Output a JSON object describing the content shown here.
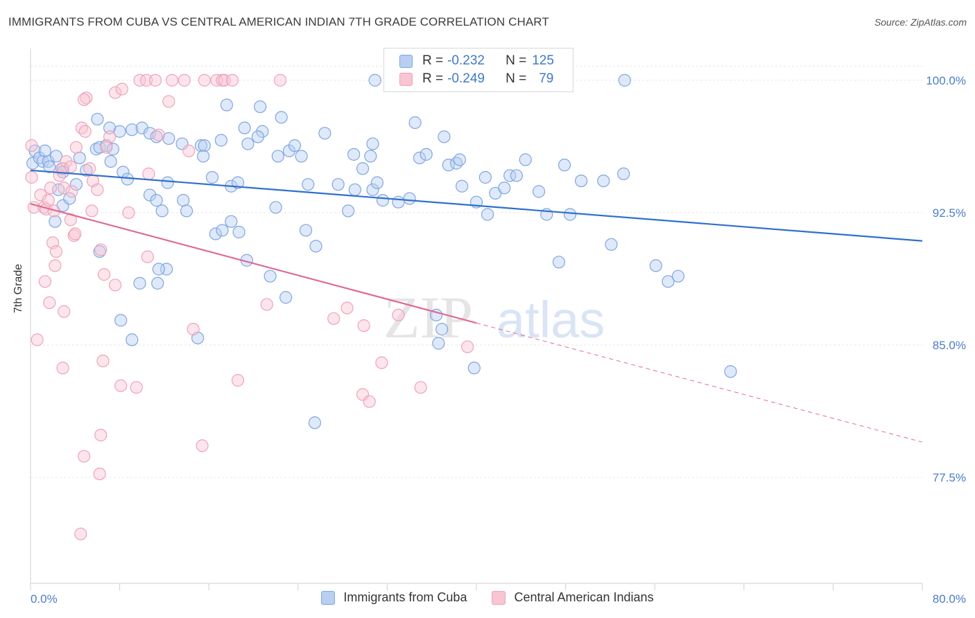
{
  "header": {
    "title": "IMMIGRANTS FROM CUBA VS CENTRAL AMERICAN INDIAN 7TH GRADE CORRELATION CHART",
    "source": "Source: ZipAtlas.com"
  },
  "watermark": {
    "zip": "ZIP",
    "atlas": "atlas"
  },
  "legend": {
    "r_label": "R =",
    "n_label": "N =",
    "series": [
      {
        "name": "Immigrants from Cuba",
        "r": "-0.232",
        "n": "125"
      },
      {
        "name": "Central American Indians",
        "r": "-0.249",
        "n": "79"
      }
    ]
  },
  "colors": {
    "blue_fill": "#b9cff2",
    "blue_stroke": "#7ea6e0",
    "blue_line": "#2f6fcf",
    "pink_fill": "#f8c5d3",
    "pink_stroke": "#eea3ba",
    "pink_line": "#e06a95",
    "tick_text": "#4a7cc9"
  },
  "chart_data": {
    "type": "scatter",
    "title": "IMMIGRANTS FROM CUBA VS CENTRAL AMERICAN INDIAN 7TH GRADE CORRELATION CHART",
    "xlabel": "",
    "ylabel": "7th Grade",
    "xlim": [
      0,
      80
    ],
    "ylim": [
      71.5,
      101.8
    ],
    "x_tick_labels": [
      "0.0%",
      "80.0%"
    ],
    "y_ticks": [
      77.5,
      85.0,
      92.5,
      100.0
    ],
    "y_tick_labels": [
      "77.5%",
      "85.0%",
      "92.5%",
      "100.0%"
    ],
    "grid": true,
    "series": [
      {
        "name": "Immigrants from Cuba",
        "trend": {
          "x": [
            0,
            80
          ],
          "y": [
            94.9,
            90.9
          ],
          "dashed_from": null
        },
        "points": [
          [
            0.2,
            95.3
          ],
          [
            0.4,
            96.0
          ],
          [
            0.8,
            95.6
          ],
          [
            1.1,
            95.4
          ],
          [
            1.3,
            96.0
          ],
          [
            1.6,
            95.4
          ],
          [
            2.3,
            95.7
          ],
          [
            2.9,
            95.0
          ],
          [
            2.9,
            94.8
          ],
          [
            2.9,
            92.9
          ],
          [
            2.2,
            92.0
          ],
          [
            2.5,
            93.8
          ],
          [
            3.5,
            93.3
          ],
          [
            4.1,
            94.1
          ],
          [
            4.4,
            95.6
          ],
          [
            5.0,
            94.9
          ],
          [
            5.9,
            96.1
          ],
          [
            6.2,
            96.2
          ],
          [
            6.8,
            96.3
          ],
          [
            7.4,
            96.1
          ],
          [
            6.0,
            97.8
          ],
          [
            7.1,
            97.3
          ],
          [
            8.0,
            97.1
          ],
          [
            9.1,
            97.2
          ],
          [
            10.0,
            97.3
          ],
          [
            10.7,
            97.0
          ],
          [
            11.3,
            96.8
          ],
          [
            12.4,
            96.7
          ],
          [
            13.6,
            96.4
          ],
          [
            15.3,
            96.3
          ],
          [
            15.6,
            96.3
          ],
          [
            8.3,
            94.8
          ],
          [
            8.7,
            94.4
          ],
          [
            10.7,
            93.5
          ],
          [
            11.3,
            93.2
          ],
          [
            12.3,
            94.2
          ],
          [
            13.7,
            93.2
          ],
          [
            14.0,
            92.6
          ],
          [
            11.8,
            92.6
          ],
          [
            15.5,
            95.7
          ],
          [
            16.3,
            94.5
          ],
          [
            17.1,
            96.6
          ],
          [
            17.6,
            98.6
          ],
          [
            19.2,
            97.3
          ],
          [
            19.5,
            96.4
          ],
          [
            20.8,
            97.1
          ],
          [
            20.4,
            96.8
          ],
          [
            20.6,
            98.5
          ],
          [
            22.2,
            95.7
          ],
          [
            22.0,
            92.8
          ],
          [
            23.2,
            96.0
          ],
          [
            23.7,
            96.3
          ],
          [
            24.3,
            95.7
          ],
          [
            22.5,
            97.9
          ],
          [
            18.0,
            94.0
          ],
          [
            18.6,
            94.2
          ],
          [
            16.6,
            91.3
          ],
          [
            17.2,
            91.5
          ],
          [
            18.0,
            92.0
          ],
          [
            18.7,
            91.4
          ],
          [
            19.4,
            89.8
          ],
          [
            21.5,
            88.9
          ],
          [
            22.9,
            87.7
          ],
          [
            24.7,
            91.5
          ],
          [
            25.6,
            90.6
          ],
          [
            24.9,
            94.1
          ],
          [
            26.4,
            97.0
          ],
          [
            27.6,
            94.1
          ],
          [
            28.5,
            92.6
          ],
          [
            29.1,
            93.8
          ],
          [
            29.0,
            95.8
          ],
          [
            29.8,
            95.0
          ],
          [
            30.5,
            95.7
          ],
          [
            30.7,
            93.8
          ],
          [
            31.1,
            94.2
          ],
          [
            31.6,
            93.2
          ],
          [
            30.7,
            96.4
          ],
          [
            30.9,
            100.0
          ],
          [
            34.5,
            97.6
          ],
          [
            34.9,
            95.6
          ],
          [
            35.5,
            95.8
          ],
          [
            34.0,
            93.3
          ],
          [
            33.0,
            93.1
          ],
          [
            37.5,
            95.2
          ],
          [
            38.2,
            95.3
          ],
          [
            38.5,
            95.5
          ],
          [
            37.1,
            96.8
          ],
          [
            38.7,
            94.0
          ],
          [
            40.8,
            94.5
          ],
          [
            40.0,
            93.1
          ],
          [
            41.0,
            92.4
          ],
          [
            41.7,
            93.6
          ],
          [
            43.0,
            94.6
          ],
          [
            43.6,
            94.6
          ],
          [
            42.5,
            93.9
          ],
          [
            44.4,
            95.5
          ],
          [
            45.6,
            93.7
          ],
          [
            46.3,
            92.4
          ],
          [
            47.9,
            95.2
          ],
          [
            48.4,
            92.4
          ],
          [
            49.4,
            94.3
          ],
          [
            51.4,
            94.3
          ],
          [
            53.2,
            94.7
          ],
          [
            53.3,
            100.0
          ],
          [
            52.1,
            90.7
          ],
          [
            56.1,
            89.5
          ],
          [
            57.2,
            88.6
          ],
          [
            58.1,
            88.9
          ],
          [
            62.8,
            83.5
          ],
          [
            47.4,
            89.7
          ],
          [
            36.4,
            86.7
          ],
          [
            36.9,
            85.9
          ],
          [
            36.6,
            85.1
          ],
          [
            39.8,
            83.7
          ],
          [
            25.5,
            80.6
          ],
          [
            15.0,
            85.4
          ],
          [
            9.1,
            85.3
          ],
          [
            9.8,
            88.5
          ],
          [
            11.4,
            88.5
          ],
          [
            12.2,
            89.3
          ],
          [
            8.1,
            86.4
          ],
          [
            6.2,
            90.3
          ],
          [
            11.5,
            89.3
          ],
          [
            7.2,
            95.4
          ],
          [
            1.7,
            95.1
          ]
        ]
      },
      {
        "name": "Central American Indians",
        "trend": {
          "x": [
            0,
            80
          ],
          "y": [
            93.0,
            79.5
          ],
          "dashed_from": 40
        },
        "points": [
          [
            0.1,
            96.3
          ],
          [
            0.1,
            94.5
          ],
          [
            0.3,
            92.8
          ],
          [
            0.9,
            93.5
          ],
          [
            1.2,
            92.8
          ],
          [
            1.4,
            92.7
          ],
          [
            1.6,
            93.2
          ],
          [
            1.8,
            93.9
          ],
          [
            2.1,
            92.6
          ],
          [
            2.0,
            90.8
          ],
          [
            2.3,
            90.3
          ],
          [
            2.2,
            89.5
          ],
          [
            2.6,
            94.6
          ],
          [
            3.0,
            93.9
          ],
          [
            2.8,
            95.0
          ],
          [
            3.2,
            95.4
          ],
          [
            3.6,
            95.1
          ],
          [
            3.7,
            93.7
          ],
          [
            3.6,
            92.1
          ],
          [
            3.9,
            91.2
          ],
          [
            4.0,
            91.3
          ],
          [
            4.1,
            96.2
          ],
          [
            4.6,
            97.3
          ],
          [
            4.9,
            97.1
          ],
          [
            5.0,
            99.0
          ],
          [
            4.8,
            98.9
          ],
          [
            5.3,
            95.0
          ],
          [
            5.6,
            94.3
          ],
          [
            6.0,
            93.8
          ],
          [
            5.5,
            92.6
          ],
          [
            6.3,
            90.4
          ],
          [
            6.6,
            89.0
          ],
          [
            7.1,
            96.8
          ],
          [
            6.8,
            96.2
          ],
          [
            7.6,
            99.3
          ],
          [
            8.2,
            99.5
          ],
          [
            8.8,
            92.5
          ],
          [
            7.6,
            88.4
          ],
          [
            8.1,
            82.7
          ],
          [
            9.5,
            82.6
          ],
          [
            10.6,
            94.7
          ],
          [
            10.5,
            90.0
          ],
          [
            11.5,
            96.9
          ],
          [
            9.8,
            100.0
          ],
          [
            10.4,
            100.0
          ],
          [
            11.2,
            100.0
          ],
          [
            12.4,
            98.8
          ],
          [
            12.7,
            100.0
          ],
          [
            13.8,
            100.0
          ],
          [
            14.2,
            96.0
          ],
          [
            14.6,
            85.9
          ],
          [
            15.4,
            79.3
          ],
          [
            15.6,
            100.0
          ],
          [
            16.7,
            100.0
          ],
          [
            17.2,
            100.0
          ],
          [
            17.4,
            100.0
          ],
          [
            18.1,
            100.0
          ],
          [
            18.6,
            83.0
          ],
          [
            21.2,
            87.3
          ],
          [
            22.4,
            100.0
          ],
          [
            27.2,
            86.5
          ],
          [
            28.4,
            87.1
          ],
          [
            29.8,
            82.2
          ],
          [
            30.4,
            81.8
          ],
          [
            29.9,
            86.1
          ],
          [
            31.5,
            84.0
          ],
          [
            33.0,
            86.7
          ],
          [
            35.0,
            82.6
          ],
          [
            39.2,
            84.9
          ],
          [
            0.6,
            85.3
          ],
          [
            6.5,
            84.1
          ],
          [
            6.3,
            79.9
          ],
          [
            6.2,
            77.7
          ],
          [
            4.8,
            78.7
          ],
          [
            4.5,
            74.3
          ],
          [
            2.9,
            83.7
          ],
          [
            3.0,
            86.9
          ],
          [
            1.3,
            88.6
          ],
          [
            1.7,
            87.4
          ]
        ]
      }
    ]
  }
}
